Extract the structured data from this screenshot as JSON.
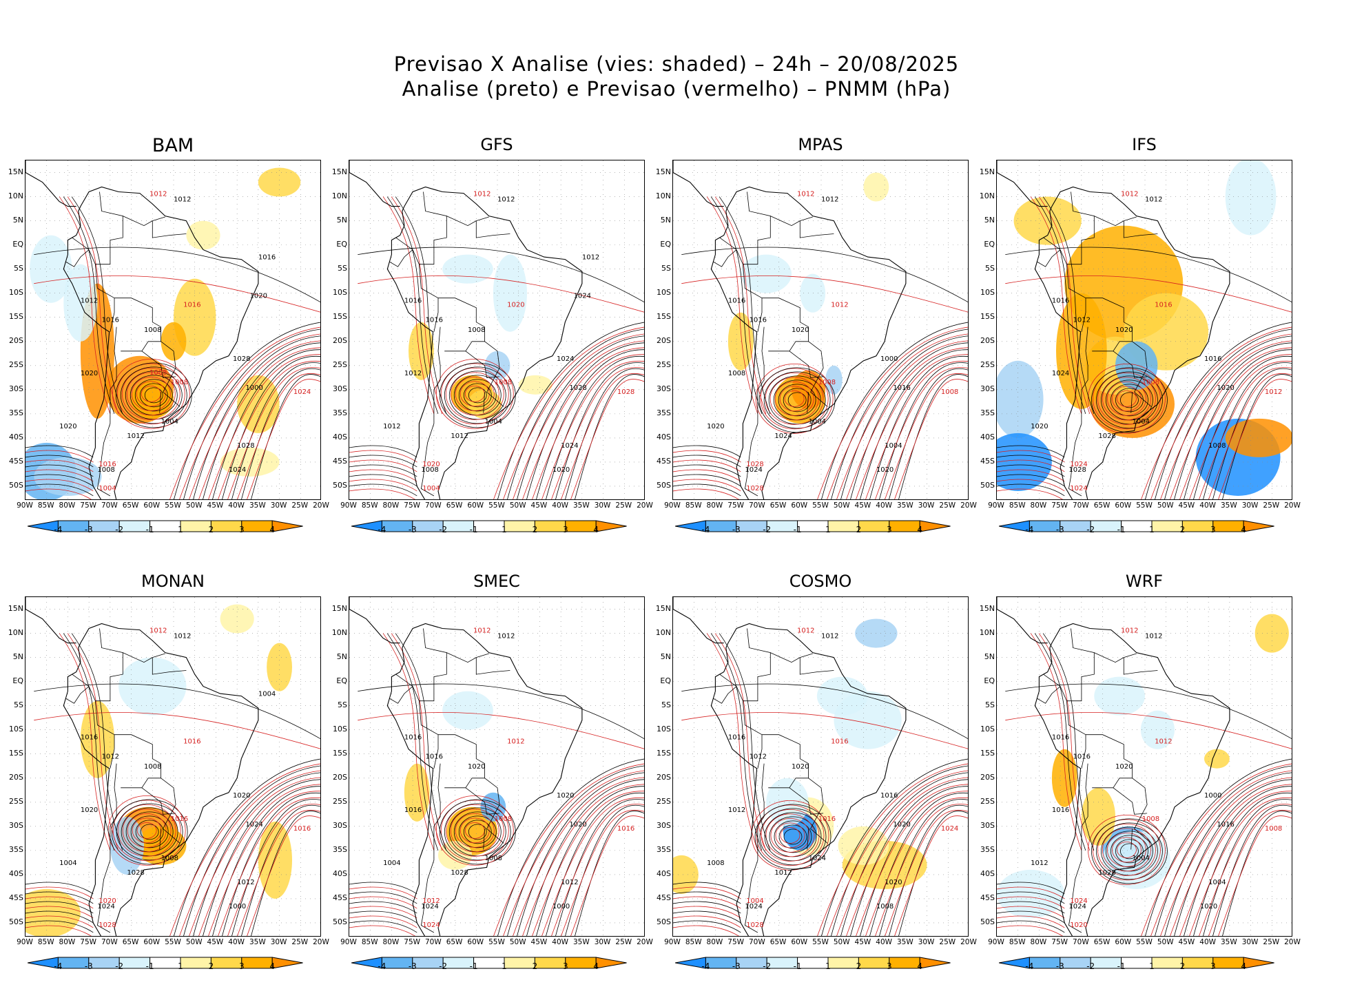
{
  "title": {
    "line1": "Previsao X Analise (vies: shaded) – 24h – 20/08/2025",
    "line2": "Analise (preto) e Previsao (vermelho) – PNMM (hPa)"
  },
  "axes": {
    "lat_labels": [
      "15N",
      "10N",
      "5N",
      "EQ",
      "5S",
      "10S",
      "15S",
      "20S",
      "25S",
      "30S",
      "35S",
      "40S",
      "45S",
      "50S"
    ],
    "lon_labels": [
      "90W",
      "85W",
      "80W",
      "75W",
      "70W",
      "65W",
      "60W",
      "55W",
      "50W",
      "45W",
      "40W",
      "35W",
      "30W",
      "25W",
      "20W"
    ]
  },
  "colorbar": {
    "labels": [
      "-4",
      "-3",
      "-2",
      "-1",
      "1",
      "2",
      "3",
      "4"
    ],
    "colors": [
      "#1e90ff",
      "#63b4f2",
      "#a8d3f5",
      "#d9f3fb",
      "#ffffff",
      "#fff4a8",
      "#ffd84a",
      "#ffb000",
      "#ff9000"
    ]
  },
  "panels": [
    {
      "name": "BAM",
      "isobar_labels": [
        "1012",
        "1012",
        "1012",
        "1016",
        "1016",
        "1008",
        "1020",
        "1008",
        "1004",
        "1020",
        "1016",
        "1012",
        "1008",
        "1004",
        "1000",
        "1028",
        "1024",
        "1028",
        "1024",
        "1020",
        "1016",
        "1020",
        "1008"
      ]
    },
    {
      "name": "GFS",
      "isobar_labels": [
        "1012",
        "1012",
        "1016",
        "1016",
        "1020",
        "1008",
        "1012",
        "1008",
        "1004",
        "1012",
        "1020",
        "1012",
        "1008",
        "1004",
        "1028",
        "1024",
        "1028",
        "1024",
        "1020",
        "1016",
        "1012",
        "1024"
      ]
    },
    {
      "name": "MPAS",
      "isobar_labels": [
        "1012",
        "1012",
        "1016",
        "1016",
        "1012",
        "1020",
        "1008",
        "1008",
        "1004",
        "1020",
        "1028",
        "1024",
        "1024",
        "1028",
        "1016",
        "1000",
        "1008",
        "1004",
        "1020"
      ]
    },
    {
      "name": "IFS",
      "isobar_labels": [
        "1012",
        "1012",
        "1016",
        "1012",
        "1016",
        "1020",
        "1024",
        "1008",
        "1004",
        "1020",
        "1024",
        "1028",
        "1028",
        "1024",
        "1020",
        "1016",
        "1012",
        "1008"
      ]
    },
    {
      "name": "MONAN",
      "isobar_labels": [
        "1012",
        "1012",
        "1016",
        "1012",
        "1016",
        "1008",
        "1020",
        "1016",
        "1008",
        "1004",
        "1020",
        "1028",
        "1024",
        "1028",
        "1024",
        "1020",
        "1016",
        "1012",
        "1000",
        "1008",
        "1004"
      ]
    },
    {
      "name": "SMEC",
      "isobar_labels": [
        "1012",
        "1012",
        "1016",
        "1016",
        "1012",
        "1020",
        "1016",
        "1008",
        "1008",
        "1004",
        "1012",
        "1028",
        "1024",
        "1024",
        "1020",
        "1020",
        "1016",
        "1012",
        "1000",
        "1004"
      ]
    },
    {
      "name": "COSMO",
      "isobar_labels": [
        "1012",
        "1012",
        "1016",
        "1012",
        "1016",
        "1020",
        "1012",
        "1016",
        "1024",
        "1008",
        "1004",
        "1012",
        "1024",
        "1028",
        "1020",
        "1016",
        "1024",
        "1020",
        "1008",
        "1004"
      ]
    },
    {
      "name": "WRF",
      "isobar_labels": [
        "1012",
        "1012",
        "1016",
        "1016",
        "1012",
        "1020",
        "1016",
        "1008",
        "1004",
        "1012",
        "1024",
        "1028",
        "1024",
        "1020",
        "1016",
        "1000",
        "1008",
        "1004",
        "1020"
      ]
    }
  ]
}
